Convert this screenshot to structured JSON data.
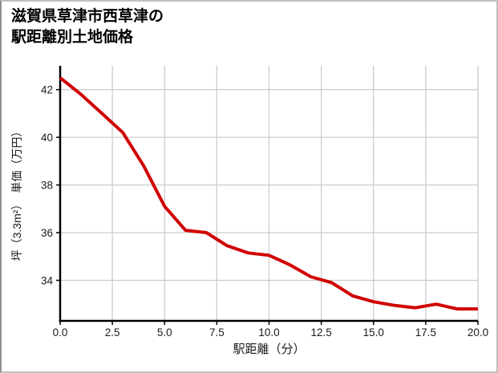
{
  "page": {
    "title_line1": "滋賀県草津市西草津の",
    "title_line2": "駅距離別土地価格"
  },
  "chart_data": {
    "type": "line",
    "title": "滋賀県草津市西草津の駅距離別土地価格",
    "xlabel": "駅距離（分）",
    "ylabel": "坪（3.3m²）　単価（万円）",
    "x": [
      0,
      1,
      2,
      3,
      4,
      5,
      6,
      7,
      8,
      9,
      10,
      11,
      12,
      13,
      14,
      15,
      16,
      17,
      18,
      19,
      20
    ],
    "values": [
      42.5,
      41.8,
      41.0,
      40.2,
      38.8,
      37.1,
      36.1,
      36.0,
      35.45,
      35.15,
      35.05,
      34.65,
      34.15,
      33.9,
      33.35,
      33.1,
      32.95,
      32.85,
      33.0,
      32.8,
      32.8
    ],
    "xlim": [
      0,
      20
    ],
    "ylim": [
      32.3,
      43.0
    ],
    "x_ticks": [
      0,
      2.5,
      5,
      7.5,
      10,
      12.5,
      15,
      17.5,
      20
    ],
    "x_tick_labels": [
      "0.0",
      "2.5",
      "5.0",
      "7.5",
      "10.0",
      "12.5",
      "15.0",
      "17.5",
      "20.0"
    ],
    "y_ticks": [
      34,
      36,
      38,
      40,
      42
    ],
    "y_tick_labels": [
      "34",
      "36",
      "38",
      "40",
      "42"
    ],
    "grid": true,
    "legend": "none",
    "line_color": "#d10000",
    "line_width": 4,
    "grid_color": "#cccccc",
    "axis_color": "#000000",
    "tick_label_color": "#1a1a1a"
  }
}
